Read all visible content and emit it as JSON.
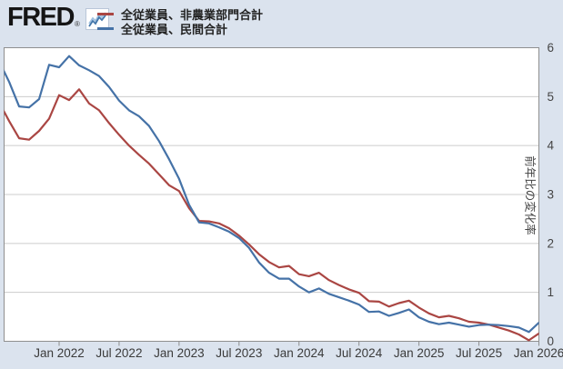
{
  "header": {
    "logo_text": "FRED",
    "registered_mark": "®",
    "logo_icon": "fred-sparkline-icon"
  },
  "legend": {
    "items": [
      {
        "label": "全従業員、非農業部門合計",
        "color": "#aa4643"
      },
      {
        "label": "全従業員、民間合計",
        "color": "#4572a7"
      }
    ]
  },
  "chart_data": {
    "type": "line",
    "title": "",
    "ylabel": "前年比の変化率",
    "ylim": [
      0,
      6
    ],
    "yticks": [
      0,
      1,
      2,
      3,
      4,
      5,
      6
    ],
    "grid": true,
    "legend_position": "top-left",
    "x_unit": "month",
    "x": [
      "2021-07",
      "2021-08",
      "2021-09",
      "2021-10",
      "2021-11",
      "2021-12",
      "2022-01",
      "2022-02",
      "2022-03",
      "2022-04",
      "2022-05",
      "2022-06",
      "2022-07",
      "2022-08",
      "2022-09",
      "2022-10",
      "2022-11",
      "2022-12",
      "2023-01",
      "2023-02",
      "2023-03",
      "2023-04",
      "2023-05",
      "2023-06",
      "2023-07",
      "2023-08",
      "2023-09",
      "2023-10",
      "2023-11",
      "2023-12",
      "2024-01",
      "2024-02",
      "2024-03",
      "2024-04",
      "2024-05",
      "2024-06",
      "2024-07",
      "2024-08",
      "2024-09",
      "2024-10",
      "2024-11",
      "2024-12",
      "2025-01",
      "2025-02",
      "2025-03",
      "2025-04",
      "2025-05",
      "2025-06",
      "2025-07",
      "2025-08",
      "2025-09",
      "2025-10",
      "2025-11",
      "2025-12",
      "2026-01"
    ],
    "xtick_labels": [
      "Jan 2022",
      "Jul 2022",
      "Jan 2023",
      "Jul 2023",
      "Jan 2024",
      "Jul 2024",
      "Jan 2025",
      "Jul 2025",
      "Jan 2026"
    ],
    "series": [
      {
        "name": "全従業員、非農業部門合計",
        "color": "#aa4643",
        "values": [
          4.88,
          4.5,
          4.15,
          4.12,
          4.3,
          4.55,
          5.03,
          4.93,
          5.15,
          4.86,
          4.72,
          4.46,
          4.22,
          4.0,
          3.81,
          3.63,
          3.41,
          3.19,
          3.07,
          2.72,
          2.46,
          2.45,
          2.41,
          2.31,
          2.16,
          1.98,
          1.78,
          1.62,
          1.51,
          1.54,
          1.37,
          1.33,
          1.4,
          1.25,
          1.15,
          1.06,
          0.99,
          0.82,
          0.81,
          0.71,
          0.78,
          0.83,
          0.69,
          0.57,
          0.49,
          0.52,
          0.47,
          0.4,
          0.38,
          0.34,
          0.28,
          0.22,
          0.14,
          0.02,
          0.16
        ]
      },
      {
        "name": "全従業員、民間合計",
        "color": "#4572a7",
        "values": [
          5.72,
          5.3,
          4.8,
          4.78,
          4.95,
          5.65,
          5.6,
          5.83,
          5.64,
          5.54,
          5.42,
          5.2,
          4.92,
          4.72,
          4.6,
          4.4,
          4.09,
          3.72,
          3.32,
          2.79,
          2.43,
          2.41,
          2.33,
          2.24,
          2.11,
          1.91,
          1.61,
          1.4,
          1.28,
          1.28,
          1.12,
          1.0,
          1.08,
          0.97,
          0.9,
          0.83,
          0.75,
          0.6,
          0.61,
          0.52,
          0.58,
          0.65,
          0.49,
          0.4,
          0.35,
          0.38,
          0.34,
          0.3,
          0.33,
          0.34,
          0.33,
          0.31,
          0.28,
          0.19,
          0.38
        ]
      }
    ]
  },
  "colors": {
    "background": "#dbe3ee",
    "plot_background": "#ffffff",
    "gridline": "#cccccc",
    "plot_border": "#8f8f8f",
    "axis_text": "#3a3a3a"
  }
}
